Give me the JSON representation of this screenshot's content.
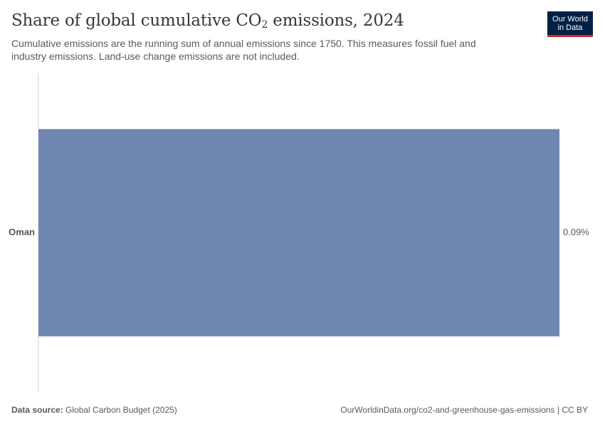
{
  "header": {
    "title_prefix": "Share of global cumulative CO",
    "title_sub": "2",
    "title_suffix": " emissions, 2024",
    "subtitle": "Cumulative emissions are the running sum of annual emissions since 1750. This measures fossil fuel and industry emissions. Land-use change emissions are not included.",
    "logo_line1": "Our World",
    "logo_line2": "in Data"
  },
  "chart_data": {
    "type": "bar",
    "orientation": "horizontal",
    "categories": [
      "Oman"
    ],
    "values": [
      0.09
    ],
    "value_labels": [
      "0.09%"
    ],
    "unit": "%",
    "xlim": [
      0,
      0.09
    ],
    "grid": false,
    "bar_color": "#6f87b1"
  },
  "footer": {
    "source_label": "Data source:",
    "source_value": " Global Carbon Budget (2025)",
    "url": "OurWorldinData.org/co2-and-greenhouse-gas-emissions | CC BY"
  }
}
